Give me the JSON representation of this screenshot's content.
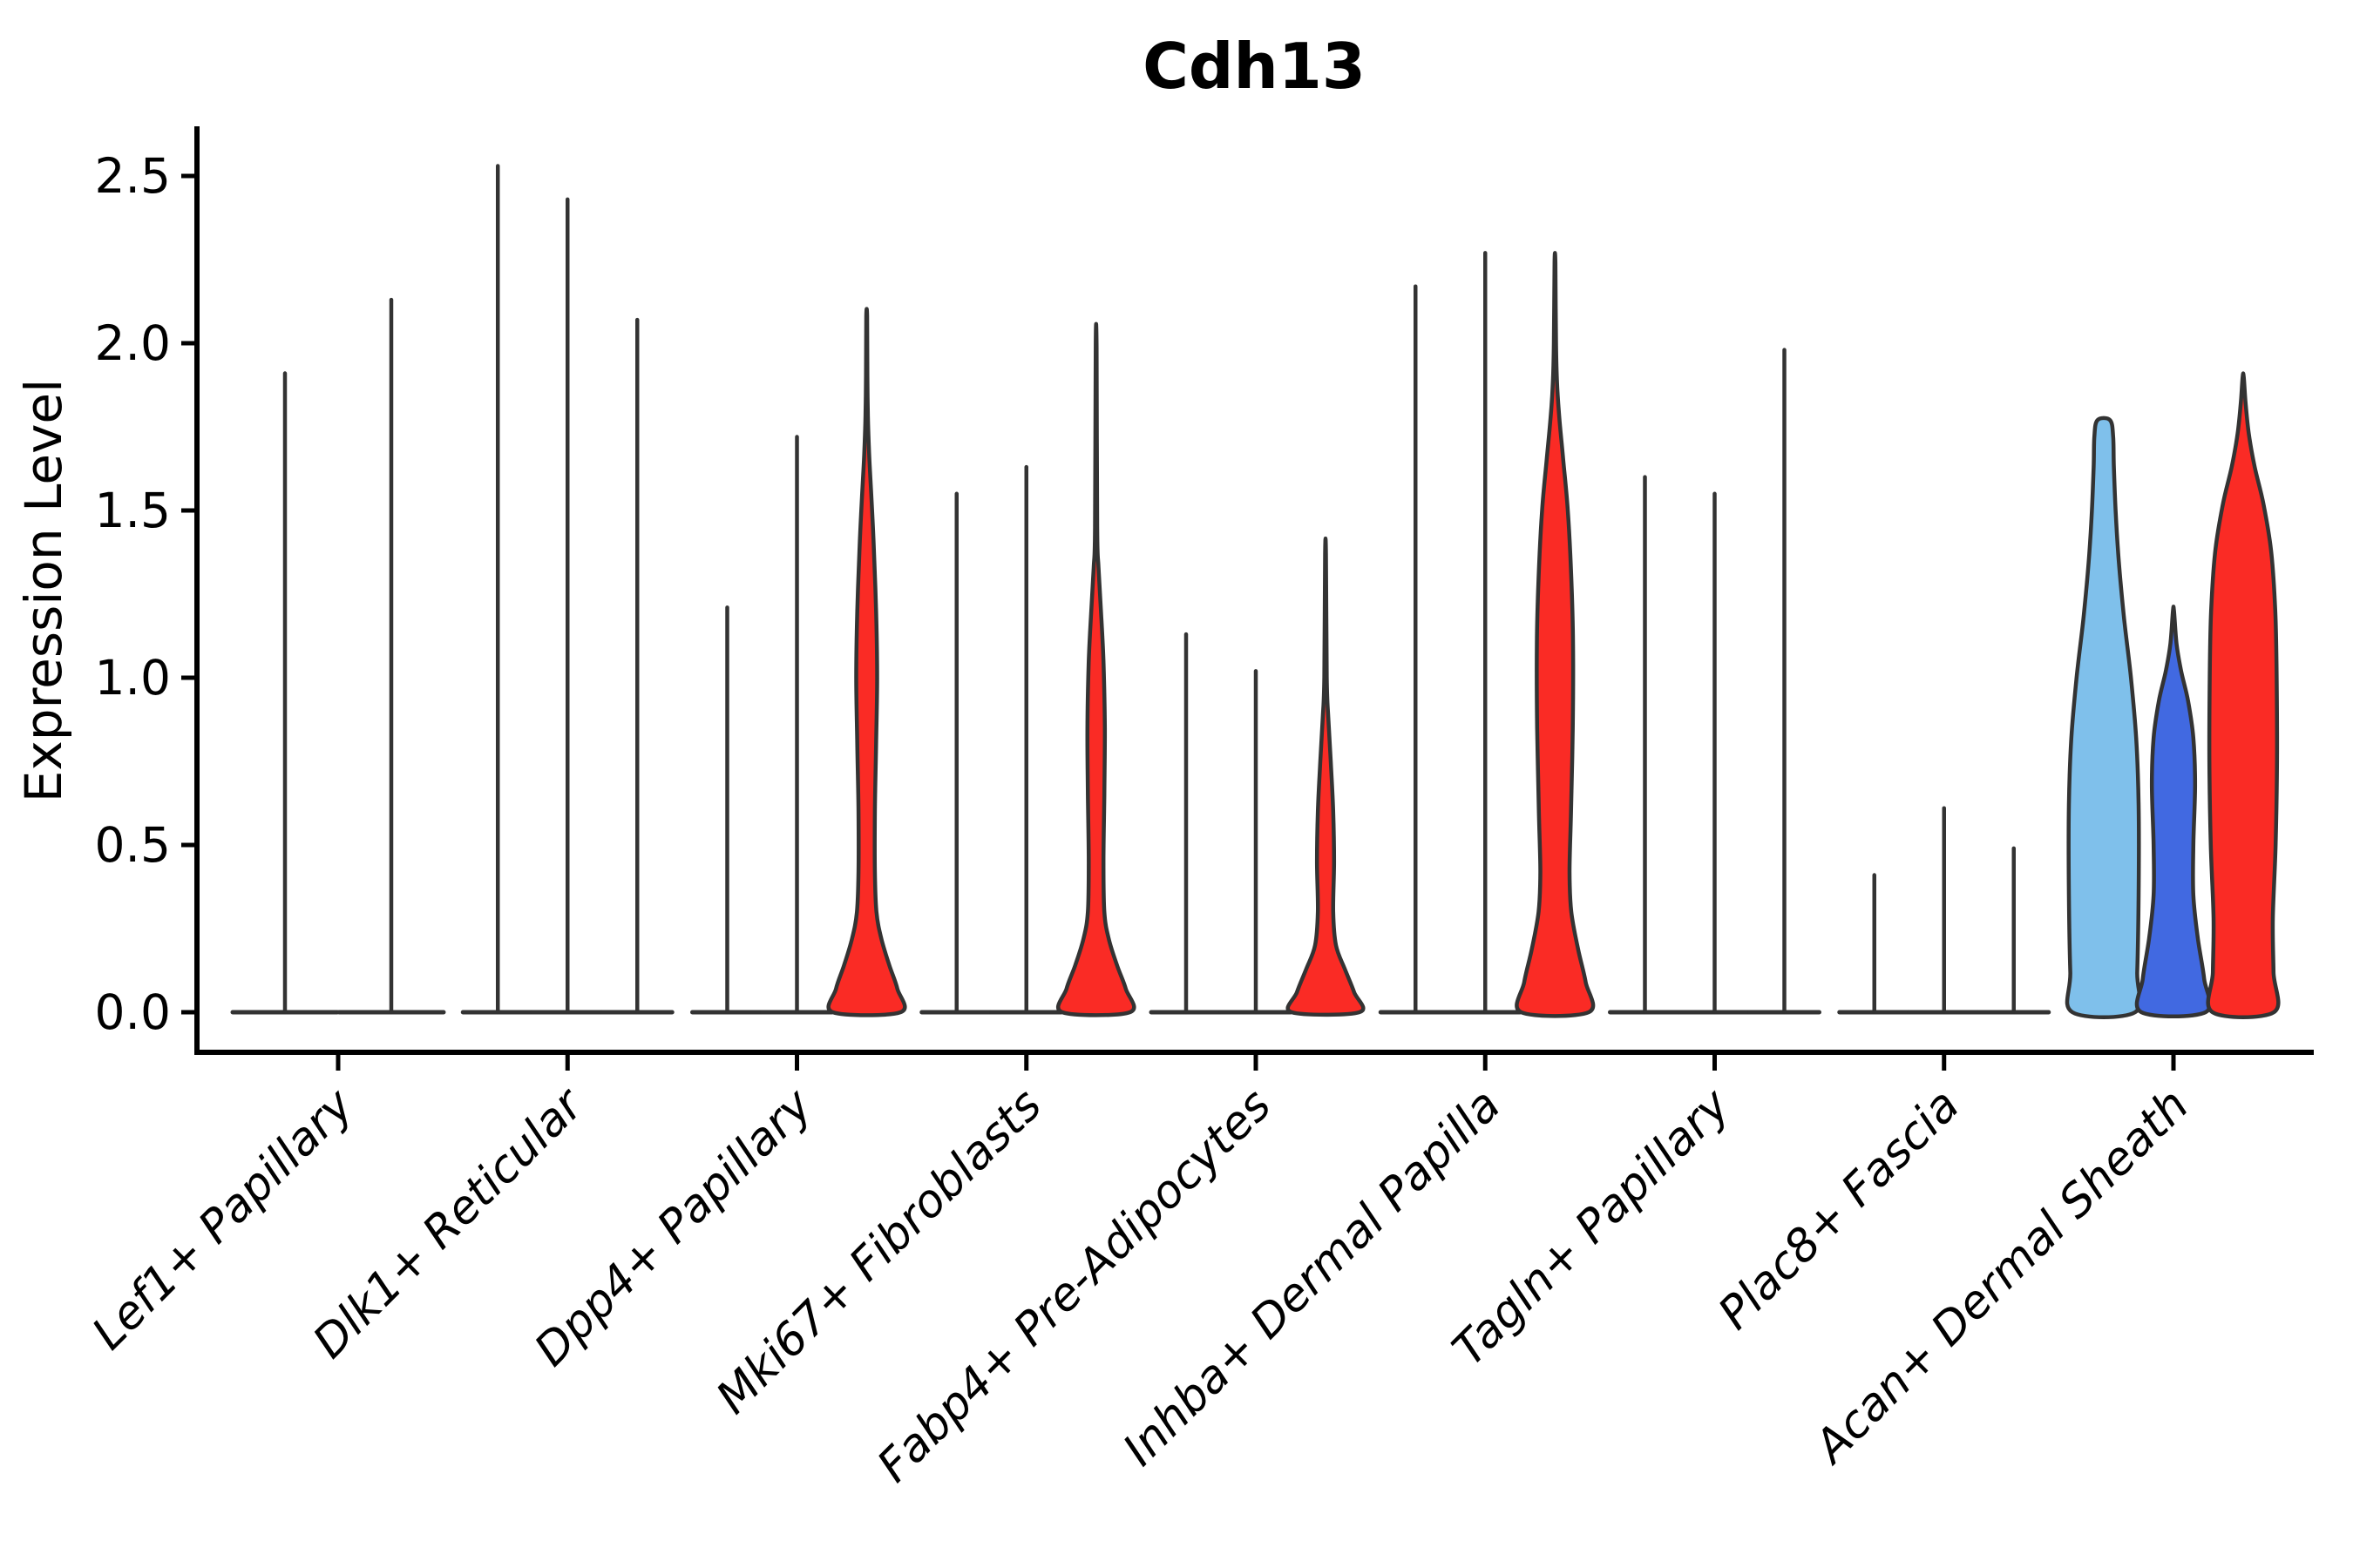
{
  "chart_data": {
    "type": "violin",
    "title": "Cdh13",
    "ylabel": "Expression Level",
    "xlabel": "",
    "grid": false,
    "legend": "none",
    "ylim": [
      0,
      2.62
    ],
    "yticks": [
      0.0,
      0.5,
      1.0,
      1.5,
      2.0,
      2.5
    ],
    "ytick_labels": [
      "0.0",
      "0.5",
      "1.0",
      "1.5",
      "2.0",
      "2.5"
    ],
    "categories": [
      "Lef1+ Papillary",
      "Dlk1+ Reticular",
      "Dpp4+ Papillary",
      "Mki67+ Fibroblasts",
      "Fabp4+ Pre-Adipocytes",
      "Inhba+ Dermal Papilla",
      "Tagln+ Papillary",
      "Plac8+ Fascia",
      "Acan+ Dermal Sheath"
    ],
    "colors": {
      "spike": "#333333",
      "outline": "#333333",
      "axis": "#000000",
      "red": "#FA2B25",
      "light_blue": "#7FC0EB",
      "dark_blue": "#4169E1"
    },
    "description": "Violin plot of Cdh13 expression; most violins collapse to a thin spike at 0 with the spike top marking the max expression; some violins are filled (red, light blue, dark blue).",
    "groups": [
      {
        "category": "Lef1+ Papillary",
        "n_slots": 2,
        "violins": [
          {
            "max": 1.91,
            "style": "spike"
          },
          {
            "max": 2.13,
            "style": "spike"
          }
        ]
      },
      {
        "category": "Dlk1+ Reticular",
        "n_slots": 3,
        "violins": [
          {
            "max": 2.53,
            "style": "spike"
          },
          {
            "max": 2.43,
            "style": "spike"
          },
          {
            "max": 2.07,
            "style": "spike"
          }
        ]
      },
      {
        "category": "Dpp4+ Papillary",
        "n_slots": 3,
        "violins": [
          {
            "max": 1.21,
            "style": "spike"
          },
          {
            "max": 1.72,
            "style": "spike"
          },
          {
            "max": 2.08,
            "style": "filled",
            "fill": "red",
            "profile": [
              [
                0,
                0.97
              ],
              [
                0.07,
                0.88
              ],
              [
                0.14,
                0.65
              ],
              [
                0.22,
                0.42
              ],
              [
                0.3,
                0.28
              ],
              [
                0.42,
                0.235
              ],
              [
                0.6,
                0.235
              ],
              [
                0.8,
                0.27
              ],
              [
                1.0,
                0.3
              ],
              [
                1.2,
                0.27
              ],
              [
                1.4,
                0.2
              ],
              [
                1.55,
                0.13
              ],
              [
                1.67,
                0.07
              ],
              [
                1.78,
                0.035
              ],
              [
                1.9,
                0.02
              ],
              [
                2.08,
                0.012
              ]
            ]
          }
        ]
      },
      {
        "category": "Mki67+ Fibroblasts",
        "n_slots": 3,
        "violins": [
          {
            "max": 1.55,
            "style": "spike"
          },
          {
            "max": 1.63,
            "style": "spike"
          },
          {
            "max": 1.99,
            "style": "filled",
            "fill": "red",
            "profile": [
              [
                0,
                0.97
              ],
              [
                0.07,
                0.85
              ],
              [
                0.14,
                0.6
              ],
              [
                0.22,
                0.36
              ],
              [
                0.3,
                0.235
              ],
              [
                0.45,
                0.21
              ],
              [
                0.65,
                0.235
              ],
              [
                0.85,
                0.25
              ],
              [
                1.05,
                0.21
              ],
              [
                1.2,
                0.14
              ],
              [
                1.33,
                0.07
              ],
              [
                1.45,
                0.03
              ],
              [
                1.99,
                0.012
              ]
            ]
          }
        ]
      },
      {
        "category": "Fabp4+ Pre-Adipocytes",
        "n_slots": 3,
        "violins": [
          {
            "max": 1.13,
            "style": "spike"
          },
          {
            "max": 1.02,
            "style": "spike"
          },
          {
            "max": 1.37,
            "style": "filled",
            "fill": "red",
            "profile": [
              [
                0,
                0.97
              ],
              [
                0.06,
                0.82
              ],
              [
                0.13,
                0.55
              ],
              [
                0.2,
                0.3
              ],
              [
                0.3,
                0.22
              ],
              [
                0.45,
                0.245
              ],
              [
                0.6,
                0.22
              ],
              [
                0.75,
                0.15
              ],
              [
                0.88,
                0.08
              ],
              [
                1.0,
                0.035
              ],
              [
                1.37,
                0.012
              ]
            ]
          }
        ]
      },
      {
        "category": "Inhba+ Dermal Papilla",
        "n_slots": 3,
        "violins": [
          {
            "max": 2.17,
            "style": "spike"
          },
          {
            "max": 2.27,
            "style": "spike"
          },
          {
            "max": 2.24,
            "style": "filled",
            "fill": "red",
            "profile": [
              [
                0,
                0.97
              ],
              [
                0.09,
                0.88
              ],
              [
                0.19,
                0.66
              ],
              [
                0.3,
                0.47
              ],
              [
                0.42,
                0.42
              ],
              [
                0.6,
                0.46
              ],
              [
                0.85,
                0.51
              ],
              [
                1.1,
                0.52
              ],
              [
                1.3,
                0.47
              ],
              [
                1.5,
                0.37
              ],
              [
                1.65,
                0.24
              ],
              [
                1.77,
                0.13
              ],
              [
                1.88,
                0.06
              ],
              [
                2.0,
                0.03
              ],
              [
                2.24,
                0.012
              ]
            ]
          }
        ]
      },
      {
        "category": "Tagln+ Papillary",
        "n_slots": 3,
        "violins": [
          {
            "max": 1.6,
            "style": "spike"
          },
          {
            "max": 1.55,
            "style": "spike"
          },
          {
            "max": 1.98,
            "style": "spike"
          }
        ]
      },
      {
        "category": "Plac8+ Fascia",
        "n_slots": 3,
        "violins": [
          {
            "max": 0.41,
            "style": "spike"
          },
          {
            "max": 0.61,
            "style": "spike"
          },
          {
            "max": 0.49,
            "style": "spike"
          }
        ]
      },
      {
        "category": "Acan+ Dermal Sheath",
        "n_slots": 3,
        "violins": [
          {
            "max": 1.77,
            "style": "filled",
            "fill": "light_blue",
            "profile": [
              [
                0,
                0.9
              ],
              [
                0.12,
                0.96
              ],
              [
                0.35,
                1.0
              ],
              [
                0.62,
                1.0
              ],
              [
                0.82,
                0.93
              ],
              [
                1.0,
                0.78
              ],
              [
                1.18,
                0.58
              ],
              [
                1.35,
                0.43
              ],
              [
                1.5,
                0.34
              ],
              [
                1.63,
                0.29
              ],
              [
                1.72,
                0.27
              ],
              [
                1.77,
                0.18
              ]
            ]
          },
          {
            "max": 1.2,
            "style": "filled",
            "fill": "dark_blue",
            "profile": [
              [
                0,
                0.92
              ],
              [
                0.1,
                0.88
              ],
              [
                0.22,
                0.7
              ],
              [
                0.35,
                0.57
              ],
              [
                0.5,
                0.57
              ],
              [
                0.68,
                0.62
              ],
              [
                0.82,
                0.57
              ],
              [
                0.93,
                0.42
              ],
              [
                1.02,
                0.22
              ],
              [
                1.1,
                0.09
              ],
              [
                1.2,
                0.015
              ]
            ]
          },
          {
            "max": 1.9,
            "style": "filled",
            "fill": "red",
            "profile": [
              [
                0,
                0.88
              ],
              [
                0.12,
                0.87
              ],
              [
                0.28,
                0.85
              ],
              [
                0.5,
                0.93
              ],
              [
                0.75,
                0.97
              ],
              [
                1.0,
                0.96
              ],
              [
                1.2,
                0.92
              ],
              [
                1.38,
                0.8
              ],
              [
                1.52,
                0.58
              ],
              [
                1.63,
                0.33
              ],
              [
                1.73,
                0.16
              ],
              [
                1.82,
                0.07
              ],
              [
                1.9,
                0.015
              ]
            ]
          }
        ]
      }
    ]
  }
}
